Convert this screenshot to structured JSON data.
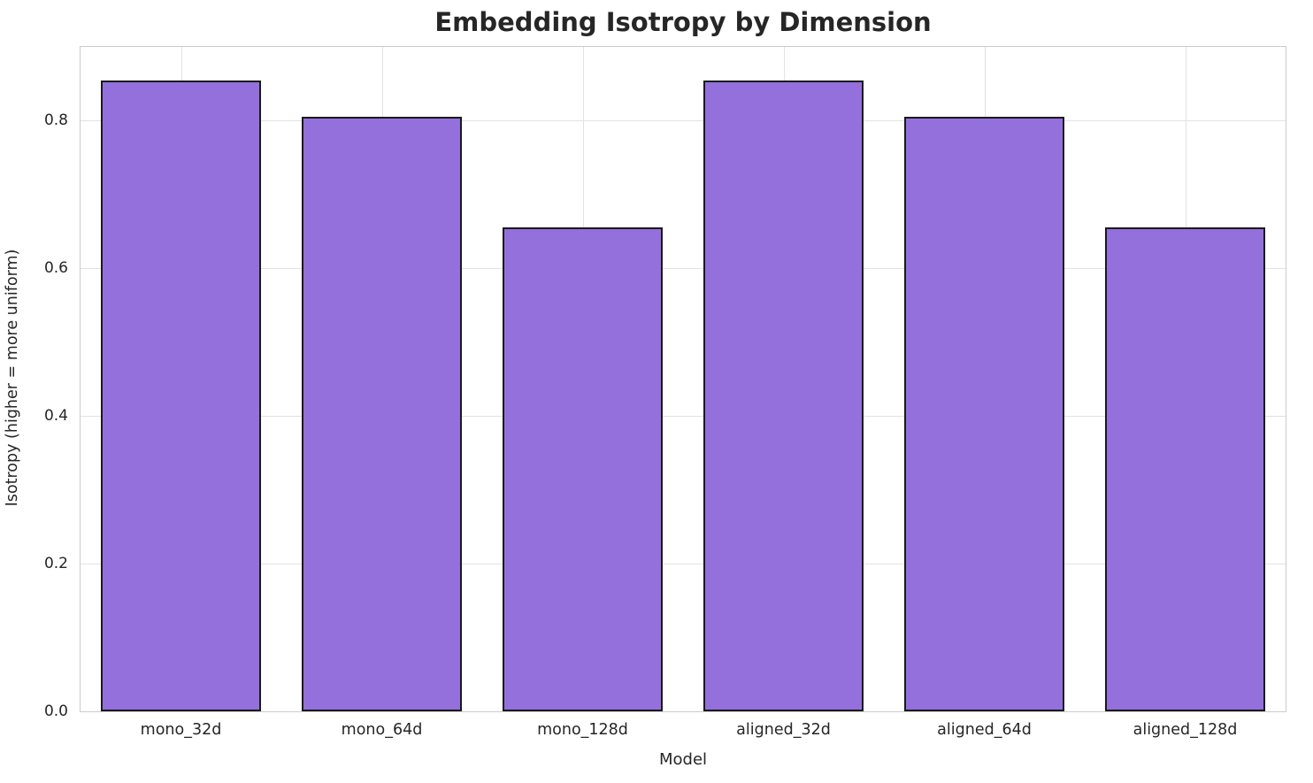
{
  "chart_data": {
    "type": "bar",
    "title": "Embedding Isotropy by Dimension",
    "xlabel": "Model",
    "ylabel": "Isotropy (higher = more uniform)",
    "categories": [
      "mono_32d",
      "mono_64d",
      "mono_128d",
      "aligned_32d",
      "aligned_64d",
      "aligned_128d"
    ],
    "values": [
      0.855,
      0.805,
      0.655,
      0.855,
      0.805,
      0.655
    ],
    "ylim": [
      0,
      0.9
    ],
    "yticks": [
      0.0,
      0.2,
      0.4,
      0.6,
      0.8
    ],
    "bar_color": "#9370DB",
    "bar_edge_color": "#1a1a1a",
    "grid": true,
    "legend": "none"
  }
}
